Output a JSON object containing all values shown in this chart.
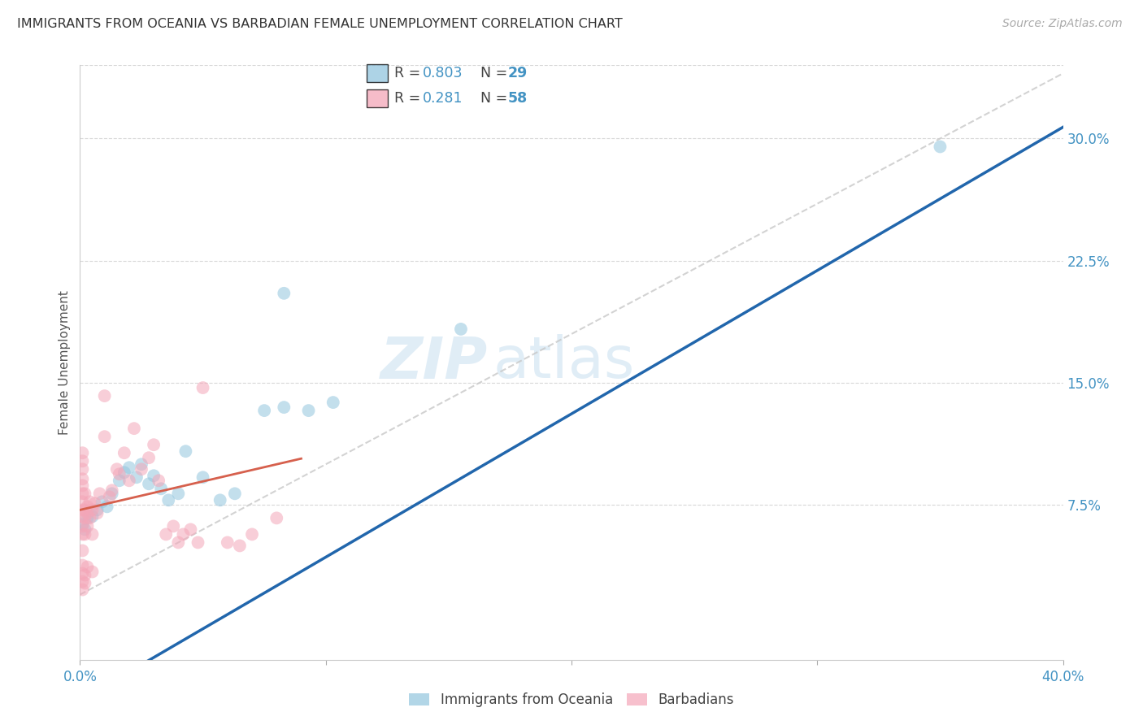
{
  "title": "IMMIGRANTS FROM OCEANIA VS BARBADIAN FEMALE UNEMPLOYMENT CORRELATION CHART",
  "source": "Source: ZipAtlas.com",
  "ylabel": "Female Unemployment",
  "xlim": [
    0.0,
    0.4
  ],
  "ylim": [
    -0.02,
    0.345
  ],
  "ytick_positions": [
    0.075,
    0.15,
    0.225,
    0.3
  ],
  "ytick_labels": [
    "7.5%",
    "15.0%",
    "22.5%",
    "30.0%"
  ],
  "watermark_zip": "ZIP",
  "watermark_atlas": "atlas",
  "blue_color": "#92c5de",
  "pink_color": "#f4a6b8",
  "blue_line_color": "#2166ac",
  "pink_line_color": "#d6604d",
  "diagonal_color": "#c8c8c8",
  "text_blue": "#4393c3",
  "blue_scatter": [
    [
      0.001,
      0.063
    ],
    [
      0.002,
      0.06
    ],
    [
      0.003,
      0.067
    ],
    [
      0.005,
      0.068
    ],
    [
      0.007,
      0.072
    ],
    [
      0.009,
      0.077
    ],
    [
      0.011,
      0.074
    ],
    [
      0.013,
      0.082
    ],
    [
      0.016,
      0.09
    ],
    [
      0.018,
      0.095
    ],
    [
      0.02,
      0.098
    ],
    [
      0.023,
      0.092
    ],
    [
      0.025,
      0.1
    ],
    [
      0.028,
      0.088
    ],
    [
      0.03,
      0.093
    ],
    [
      0.033,
      0.085
    ],
    [
      0.036,
      0.078
    ],
    [
      0.04,
      0.082
    ],
    [
      0.043,
      0.108
    ],
    [
      0.05,
      0.092
    ],
    [
      0.057,
      0.078
    ],
    [
      0.063,
      0.082
    ],
    [
      0.075,
      0.133
    ],
    [
      0.083,
      0.135
    ],
    [
      0.093,
      0.133
    ],
    [
      0.103,
      0.138
    ],
    [
      0.155,
      0.183
    ],
    [
      0.083,
      0.205
    ],
    [
      0.35,
      0.295
    ]
  ],
  "pink_scatter": [
    [
      0.001,
      0.057
    ],
    [
      0.001,
      0.068
    ],
    [
      0.001,
      0.082
    ],
    [
      0.001,
      0.091
    ],
    [
      0.001,
      0.072
    ],
    [
      0.001,
      0.077
    ],
    [
      0.001,
      0.087
    ],
    [
      0.001,
      0.097
    ],
    [
      0.001,
      0.102
    ],
    [
      0.001,
      0.107
    ],
    [
      0.001,
      0.062
    ],
    [
      0.001,
      0.047
    ],
    [
      0.001,
      0.028
    ],
    [
      0.001,
      0.033
    ],
    [
      0.001,
      0.038
    ],
    [
      0.001,
      0.023
    ],
    [
      0.002,
      0.072
    ],
    [
      0.002,
      0.082
    ],
    [
      0.002,
      0.067
    ],
    [
      0.002,
      0.057
    ],
    [
      0.002,
      0.032
    ],
    [
      0.002,
      0.027
    ],
    [
      0.003,
      0.074
    ],
    [
      0.003,
      0.07
    ],
    [
      0.003,
      0.062
    ],
    [
      0.003,
      0.037
    ],
    [
      0.004,
      0.077
    ],
    [
      0.004,
      0.067
    ],
    [
      0.005,
      0.072
    ],
    [
      0.005,
      0.057
    ],
    [
      0.005,
      0.034
    ],
    [
      0.006,
      0.076
    ],
    [
      0.007,
      0.07
    ],
    [
      0.008,
      0.082
    ],
    [
      0.01,
      0.117
    ],
    [
      0.012,
      0.08
    ],
    [
      0.013,
      0.084
    ],
    [
      0.015,
      0.097
    ],
    [
      0.016,
      0.094
    ],
    [
      0.018,
      0.107
    ],
    [
      0.02,
      0.09
    ],
    [
      0.022,
      0.122
    ],
    [
      0.025,
      0.097
    ],
    [
      0.028,
      0.104
    ],
    [
      0.03,
      0.112
    ],
    [
      0.032,
      0.09
    ],
    [
      0.035,
      0.057
    ],
    [
      0.038,
      0.062
    ],
    [
      0.04,
      0.052
    ],
    [
      0.042,
      0.057
    ],
    [
      0.045,
      0.06
    ],
    [
      0.048,
      0.052
    ],
    [
      0.05,
      0.147
    ],
    [
      0.06,
      0.052
    ],
    [
      0.065,
      0.05
    ],
    [
      0.07,
      0.057
    ],
    [
      0.08,
      0.067
    ],
    [
      0.01,
      0.142
    ]
  ],
  "grid_color": "#d8d8d8",
  "background_color": "#ffffff",
  "blue_line_intercept": -0.045,
  "blue_line_slope": 0.88,
  "pink_line_intercept": 0.072,
  "pink_line_slope": 0.35,
  "pink_line_xmax": 0.09
}
